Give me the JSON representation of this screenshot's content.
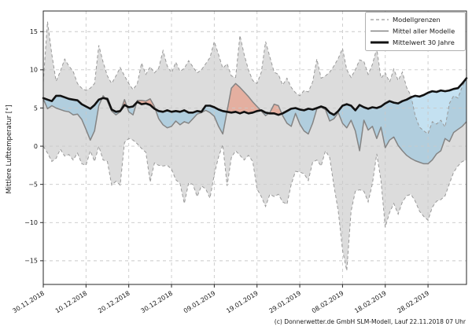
{
  "chart_data": {
    "type": "line",
    "title": "",
    "ylabel": "Mittlere Lufttemperatur [°]",
    "xlabel": "",
    "grid": true,
    "legend_position": "top-right",
    "ylim": [
      -18.1,
      17.7
    ],
    "y_ticks": [
      15,
      10,
      5,
      0,
      -5,
      -10,
      -15
    ],
    "x_tick_days": [
      0,
      10,
      20,
      30,
      40,
      50,
      60,
      70,
      80,
      90
    ],
    "x_tick_labels": [
      "30.11.2018",
      "10.12.2018",
      "20.12.2018",
      "30.12.2018",
      "09.01.2019",
      "19.01.2019",
      "29.01.2019",
      "08.02.2019",
      "18.02.2019",
      "28.02.2019"
    ],
    "series_days": 100,
    "legend_entries": [
      {
        "label": "Modellgrenzen",
        "style": "dashed-gray"
      },
      {
        "label": "Mittel aller Modelle",
        "style": "solid-gray"
      },
      {
        "label": "Mittelwert 30 Jahre",
        "style": "thick-black"
      }
    ],
    "series": [
      {
        "name": "upper_bound",
        "legend": "Modellgrenzen",
        "values": [
          8.4,
          16.3,
          12.0,
          8.5,
          9.8,
          11.4,
          10.5,
          9.8,
          8.2,
          7.6,
          7.3,
          7.6,
          8.2,
          13.2,
          11.0,
          9.2,
          8.2,
          9.2,
          10.3,
          9.2,
          8.2,
          7.4,
          8.2,
          10.9,
          9.4,
          10.4,
          9.6,
          10.2,
          12.5,
          10.5,
          9.6,
          11.0,
          9.8,
          10.2,
          11.2,
          10.4,
          9.6,
          10.0,
          10.8,
          11.6,
          13.7,
          12.0,
          10.2,
          10.8,
          9.2,
          9.0,
          14.5,
          12.0,
          10.0,
          8.6,
          8.2,
          9.7,
          13.7,
          11.7,
          9.7,
          9.4,
          8.0,
          8.9,
          7.7,
          7.0,
          6.6,
          7.3,
          7.1,
          8.4,
          11.4,
          8.9,
          9.2,
          9.7,
          10.5,
          11.5,
          12.8,
          10.0,
          9.0,
          10.0,
          11.3,
          11.1,
          9.4,
          10.7,
          12.8,
          8.9,
          9.6,
          8.4,
          10.1,
          8.6,
          9.7,
          7.7,
          6.6,
          4.0,
          2.5,
          2.0,
          1.6,
          3.2,
          2.9,
          3.4,
          2.5,
          5.6,
          6.6,
          6.3,
          7.8,
          8.8
        ]
      },
      {
        "name": "lower_bound",
        "legend": "Modellgrenzen",
        "values": [
          0.0,
          -0.9,
          -2.0,
          -1.6,
          -0.4,
          -1.3,
          -1.1,
          -1.8,
          -0.9,
          -2.3,
          -2.5,
          -0.6,
          -2.0,
          0.0,
          -1.8,
          -2.0,
          -5.1,
          -4.6,
          -5.1,
          0.5,
          1.0,
          0.8,
          0.3,
          -0.3,
          -0.8,
          -4.7,
          -2.2,
          -2.5,
          -2.6,
          -2.5,
          -3.0,
          -4.4,
          -4.9,
          -7.5,
          -4.8,
          -5.0,
          -6.6,
          -5.2,
          -5.6,
          -6.8,
          -3.7,
          -1.4,
          0.2,
          -5.2,
          -1.5,
          -0.6,
          -1.2,
          -1.8,
          -1.2,
          -2.0,
          -5.6,
          -6.6,
          -7.9,
          -6.3,
          -6.6,
          -6.3,
          -7.3,
          -7.6,
          -5.0,
          -3.3,
          -3.4,
          -3.6,
          -4.5,
          -2.1,
          -1.8,
          -2.6,
          -0.6,
          -1.5,
          -5.2,
          -8.5,
          -13.6,
          -16.3,
          -8.5,
          -5.9,
          -5.7,
          -5.9,
          -7.3,
          -4.9,
          -1.0,
          -4.5,
          -10.6,
          -8.7,
          -7.5,
          -8.9,
          -7.3,
          -6.5,
          -6.3,
          -7.2,
          -8.5,
          -9.2,
          -9.7,
          -8.0,
          -7.2,
          -7.0,
          -6.5,
          -4.9,
          -3.4,
          -2.6,
          -2.0,
          -1.8
        ]
      },
      {
        "name": "model_mean",
        "legend": "Mittel aller Modelle",
        "values": [
          6.2,
          4.9,
          5.3,
          5.0,
          4.8,
          4.6,
          4.5,
          4.1,
          4.2,
          3.5,
          2.2,
          0.8,
          2.0,
          5.3,
          6.6,
          5.9,
          4.6,
          4.1,
          4.5,
          6.1,
          4.5,
          4.1,
          6.0,
          6.0,
          5.9,
          6.2,
          5.2,
          3.6,
          2.8,
          2.4,
          2.6,
          3.3,
          2.8,
          3.2,
          3.0,
          3.6,
          4.2,
          4.4,
          4.7,
          4.4,
          3.9,
          2.6,
          1.6,
          4.6,
          7.6,
          8.2,
          7.7,
          7.1,
          6.5,
          5.8,
          5.2,
          4.6,
          4.0,
          4.4,
          5.5,
          5.3,
          4.0,
          3.0,
          2.6,
          4.3,
          2.9,
          2.0,
          1.6,
          3.0,
          4.9,
          5.1,
          4.8,
          3.3,
          3.6,
          4.4,
          3.0,
          2.4,
          3.4,
          2.0,
          -0.6,
          3.4,
          2.1,
          2.6,
          1.0,
          2.5,
          -0.2,
          0.8,
          1.2,
          0.1,
          -0.6,
          -1.2,
          -1.6,
          -1.9,
          -2.1,
          -2.3,
          -2.3,
          -1.8,
          -1.0,
          -0.6,
          1.0,
          0.6,
          1.8,
          2.2,
          2.6,
          3.2
        ]
      },
      {
        "name": "clim_30yr",
        "legend": "Mittelwert 30 Jahre",
        "values": [
          6.3,
          6.1,
          5.9,
          6.6,
          6.6,
          6.4,
          6.2,
          6.1,
          6.0,
          5.5,
          5.2,
          4.9,
          5.4,
          6.1,
          6.3,
          6.2,
          4.8,
          4.5,
          4.6,
          5.4,
          5.1,
          5.2,
          5.8,
          5.5,
          5.6,
          5.4,
          4.9,
          4.6,
          4.5,
          4.7,
          4.5,
          4.6,
          4.5,
          4.7,
          4.4,
          4.4,
          4.6,
          4.5,
          5.3,
          5.3,
          5.1,
          4.8,
          4.6,
          4.5,
          4.4,
          4.5,
          4.3,
          4.5,
          4.3,
          4.4,
          4.6,
          4.7,
          4.4,
          4.3,
          4.3,
          4.1,
          4.3,
          4.6,
          4.9,
          5.0,
          4.8,
          4.7,
          4.9,
          4.8,
          5.0,
          5.2,
          5.0,
          4.4,
          4.1,
          4.6,
          5.3,
          5.5,
          5.3,
          4.7,
          5.4,
          5.1,
          4.9,
          5.1,
          5.0,
          5.2,
          5.6,
          5.9,
          5.7,
          5.6,
          5.9,
          6.1,
          6.4,
          6.6,
          6.5,
          6.7,
          7.0,
          7.2,
          7.1,
          7.3,
          7.2,
          7.3,
          7.5,
          7.6,
          8.2,
          8.9
        ]
      }
    ],
    "colors": {
      "background": "#ffffff",
      "band_fill": "#dcdcdc",
      "bound_line": "#999999",
      "mean_line": "#848484",
      "clim_line": "#111111",
      "warm_fill": "rgba(235,130,100,0.5)",
      "cold_fill": "rgba(125,188,223,0.45)",
      "grid_line": "#c9c9c9",
      "axis": "#262626"
    }
  },
  "footer": {
    "credit": "(c) Donnerwetter.de GmbH SLM-Modell, Lauf 22.11.2018 07 Uhr"
  }
}
